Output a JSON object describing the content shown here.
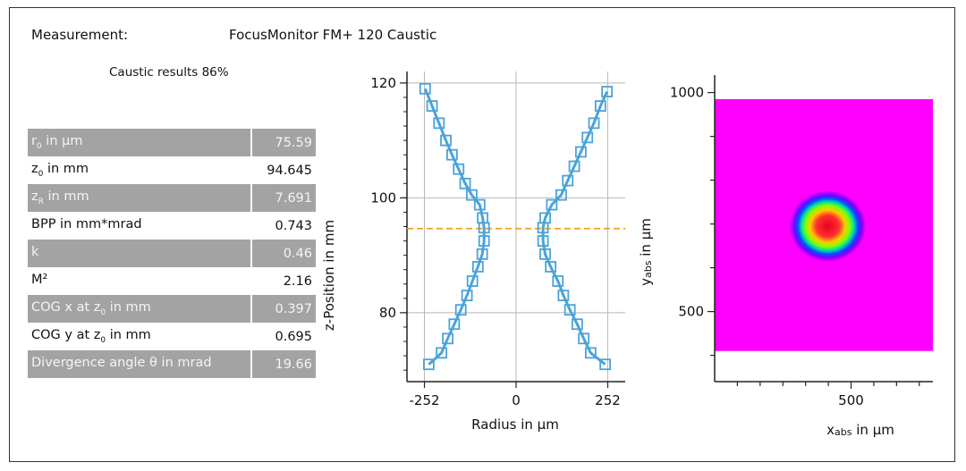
{
  "header": {
    "measurement_label": "Measurement:",
    "measurement_value": "FocusMonitor FM+ 120 Caustic"
  },
  "caustic_title": "Caustic results 86%",
  "results": [
    {
      "label_main": "r",
      "label_sub": "0",
      "label_rest": " in µm",
      "value": "75.59",
      "shaded": true
    },
    {
      "label_main": "z",
      "label_sub": "0",
      "label_rest": " in mm",
      "value": "94.645",
      "shaded": false
    },
    {
      "label_main": "z",
      "label_sub": "R",
      "label_rest": " in mm",
      "value": "7.691",
      "shaded": true
    },
    {
      "label_main": "BPP in mm*mrad",
      "label_sub": "",
      "label_rest": "",
      "value": "0.743",
      "shaded": false
    },
    {
      "label_main": "k",
      "label_sub": "",
      "label_rest": "",
      "value": "0.46",
      "shaded": true
    },
    {
      "label_main": "M²",
      "label_sub": "",
      "label_rest": "",
      "value": "2.16",
      "shaded": false
    },
    {
      "label_main": "COG x at z",
      "label_sub": "0",
      "label_rest": " in mm",
      "value": "0.397",
      "shaded": true
    },
    {
      "label_main": "COG y at z",
      "label_sub": "0",
      "label_rest": " in mm",
      "value": "0.695",
      "shaded": false
    },
    {
      "label_main": "Divergence angle θ in mrad",
      "label_sub": "",
      "label_rest": "",
      "value": "19.66",
      "shaded": true
    }
  ],
  "chart_data": [
    {
      "type": "scatter",
      "xlabel": "Radius in µm",
      "ylabel": "z-Position in mm",
      "xlim": [
        -300,
        300
      ],
      "ylim": [
        68,
        122
      ],
      "xticks": [
        -252,
        0,
        252
      ],
      "yticks": [
        80,
        100,
        120
      ],
      "grid": true,
      "waist_z": 94.645,
      "colors": {
        "series": "#4aa3d8",
        "waist_line": "#f0a020"
      },
      "series": [
        {
          "points": [
            [
              -250,
              119
            ],
            [
              -231,
              116
            ],
            [
              -212,
              113
            ],
            [
              -193,
              110
            ],
            [
              -176,
              107.5
            ],
            [
              -158,
              105
            ],
            [
              -140,
              102.5
            ],
            [
              -122,
              100.5
            ],
            [
              -100,
              98.8
            ],
            [
              -92,
              96.5
            ],
            [
              -88,
              94.8
            ],
            [
              -88,
              92.5
            ],
            [
              -93,
              90.2
            ],
            [
              -105,
              88
            ],
            [
              -120,
              85.5
            ],
            [
              -135,
              83
            ],
            [
              -152,
              80.5
            ],
            [
              -170,
              78
            ],
            [
              -188,
              75.5
            ],
            [
              -205,
              73
            ],
            [
              -240,
              71
            ]
          ]
        },
        {
          "points": [
            [
              250,
              118.5
            ],
            [
              232,
              116
            ],
            [
              214,
              113
            ],
            [
              196,
              110.5
            ],
            [
              178,
              108
            ],
            [
              160,
              105.5
            ],
            [
              142,
              103
            ],
            [
              124,
              100.5
            ],
            [
              98,
              98.8
            ],
            [
              80,
              96.5
            ],
            [
              74,
              94.8
            ],
            [
              74,
              92.5
            ],
            [
              80,
              90.2
            ],
            [
              95,
              88
            ],
            [
              115,
              85.5
            ],
            [
              130,
              83
            ],
            [
              148,
              80.5
            ],
            [
              168,
              78
            ],
            [
              186,
              75.5
            ],
            [
              205,
              73
            ],
            [
              245,
              71
            ]
          ]
        }
      ]
    },
    {
      "type": "heatmap",
      "xlabel_main": "x",
      "xlabel_sub": "abs",
      "xlabel_rest": " in µm",
      "ylabel_main": "y",
      "ylabel_sub": "abs",
      "ylabel_rest": " in µm",
      "xlim": [
        -100,
        860
      ],
      "ylim": [
        340,
        1040
      ],
      "xticks_labeled": [
        500
      ],
      "yticks_labeled": [
        500,
        1000
      ],
      "image_extent": {
        "x": [
          0,
          860
        ],
        "y": [
          410,
          985
        ]
      },
      "spot_center": [
        397,
        695
      ],
      "colors": {
        "background": "#ff00ff"
      }
    }
  ]
}
